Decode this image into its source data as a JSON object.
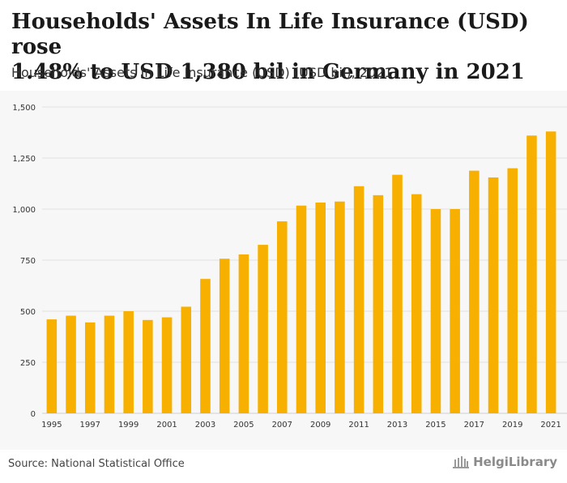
{
  "header": {
    "title_line1": "Households' Assets In Life Insurance (USD) rose",
    "title_line2": "1.48% to USD 1,380 bil in Germany in 2021",
    "subtitle": "Households' Assets In Life Insurance (USD) (USD bil), 2021"
  },
  "footer": {
    "source": "Source: National Statistical Office",
    "logo_text": "HelgiLibrary"
  },
  "colors": {
    "bar": "#f7b000",
    "grid": "#e2e2e2",
    "axis_text": "#333333"
  },
  "chart_data": {
    "type": "bar",
    "title": "Households' Assets In Life Insurance (USD) rose 1.48% to USD 1,380 bil in Germany in 2021",
    "ylabel": "USD bil",
    "xlabel": "",
    "ylim": [
      0,
      1500
    ],
    "yticks": [
      0,
      250,
      500,
      750,
      1000,
      1250,
      1500
    ],
    "ytick_labels": [
      "0",
      "250",
      "500",
      "750",
      "1,000",
      "1,250",
      "1,500"
    ],
    "categories": [
      "1995",
      "1996",
      "1997",
      "1998",
      "1999",
      "2000",
      "2001",
      "2002",
      "2003",
      "2004",
      "2005",
      "2006",
      "2007",
      "2008",
      "2009",
      "2010",
      "2011",
      "2012",
      "2013",
      "2014",
      "2015",
      "2016",
      "2017",
      "2018",
      "2019",
      "2020",
      "2021"
    ],
    "xtick_labels": [
      "1995",
      "",
      "1997",
      "",
      "1999",
      "",
      "2001",
      "",
      "2003",
      "",
      "2005",
      "",
      "2007",
      "",
      "2009",
      "",
      "2011",
      "",
      "2013",
      "",
      "2015",
      "",
      "2017",
      "",
      "2019",
      "",
      "2021"
    ],
    "values": [
      460,
      478,
      445,
      478,
      500,
      457,
      470,
      522,
      658,
      757,
      778,
      825,
      940,
      1017,
      1032,
      1037,
      1112,
      1068,
      1168,
      1073,
      1000,
      1000,
      1188,
      1155,
      1200,
      1360,
      1380
    ],
    "grid": true
  }
}
